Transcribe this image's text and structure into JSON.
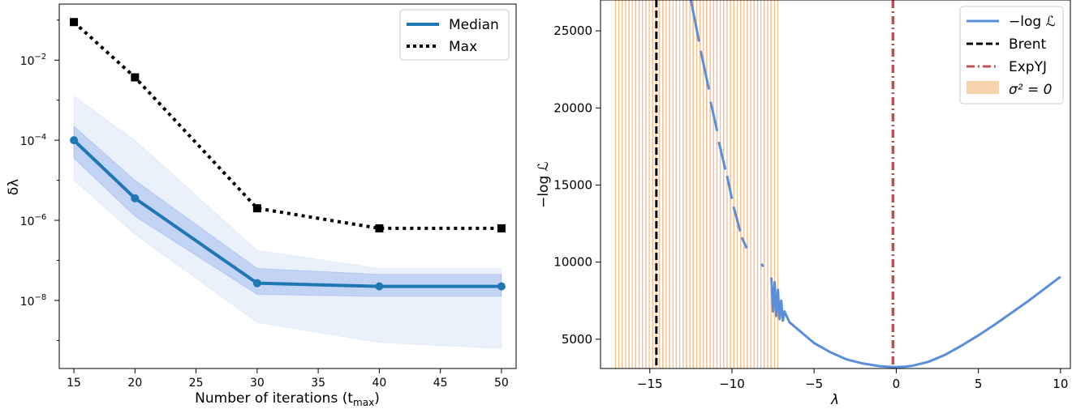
{
  "chart_data": [
    {
      "type": "line",
      "title": "",
      "xlabel": "Number of iterations (t",
      "xlabel_sub": "max",
      "xlabel_close": ")",
      "ylabel": "δλ",
      "yscale": "log",
      "xlim": [
        13.8,
        51.2
      ],
      "ylim_log10": [
        -9.7,
        -0.6
      ],
      "x_ticks": [
        15,
        20,
        25,
        30,
        35,
        40,
        45,
        50
      ],
      "y_ticks": [
        {
          "exp": -2,
          "label": "10",
          "sup": "−2"
        },
        {
          "exp": -4,
          "label": "10",
          "sup": "−4"
        },
        {
          "exp": -6,
          "label": "10",
          "sup": "−6"
        },
        {
          "exp": -8,
          "label": "10",
          "sup": "−8"
        }
      ],
      "x": [
        15,
        20,
        30,
        40,
        50
      ],
      "series": [
        {
          "name": "Median",
          "style": "solid",
          "color": "#1f77b4",
          "values_log10": [
            -4.0,
            -5.45,
            -7.57,
            -7.65,
            -7.65
          ]
        },
        {
          "name": "Max",
          "style": "dotted",
          "color": "#000000",
          "values_log10": [
            -1.05,
            -2.43,
            -5.7,
            -6.2,
            -6.2
          ]
        }
      ],
      "bands": [
        {
          "name": "outer",
          "color": "#1f5fd6",
          "opacity": 0.09,
          "lower_log10": [
            -5.0,
            -6.35,
            -8.55,
            -9.05,
            -9.2
          ],
          "upper_log10": [
            -2.9,
            -4.0,
            -6.75,
            -7.2,
            -7.2
          ]
        },
        {
          "name": "inner",
          "color": "#1f5fd6",
          "opacity": 0.2,
          "lower_log10": [
            -4.45,
            -5.9,
            -7.85,
            -7.9,
            -7.9
          ],
          "upper_log10": [
            -3.65,
            -5.0,
            -7.2,
            -7.35,
            -7.35
          ]
        }
      ],
      "legend": {
        "position": "top-right",
        "entries": [
          "Median",
          "Max"
        ]
      }
    },
    {
      "type": "line",
      "title": "",
      "xlabel": "λ",
      "ylabel": "−log ℒ",
      "xlim": [
        -18.0,
        10.6
      ],
      "ylim": [
        3100,
        27000
      ],
      "x_ticks": [
        {
          "value": -15,
          "label": "−15"
        },
        {
          "value": -10,
          "label": "−10"
        },
        {
          "value": -5,
          "label": "−5"
        },
        {
          "value": 0,
          "label": "0"
        },
        {
          "value": 5,
          "label": "5"
        },
        {
          "value": 10,
          "label": "10"
        }
      ],
      "y_ticks": [
        5000,
        10000,
        15000,
        20000,
        25000
      ],
      "nll_series": {
        "name": "−log ℒ",
        "color": "#5b8ed9",
        "segments": [
          [
            [
              -12.5,
              27000
            ],
            [
              -12.0,
              24300
            ]
          ],
          [
            [
              -11.9,
              23700
            ],
            [
              -11.4,
              21200
            ]
          ],
          [
            [
              -11.3,
              20400
            ],
            [
              -10.9,
              18500
            ]
          ],
          [
            [
              -10.8,
              17800
            ],
            [
              -10.4,
              16000
            ]
          ],
          [
            [
              -10.3,
              15600
            ],
            [
              -10.0,
              14100
            ]
          ],
          [
            [
              -9.9,
              13600
            ],
            [
              -9.5,
              12000
            ]
          ],
          [
            [
              -9.4,
              11600
            ],
            [
              -9.1,
              10900
            ]
          ],
          [
            [
              -8.2,
              9900
            ],
            [
              -8.1,
              9700
            ]
          ]
        ],
        "main": [
          [
            -7.6,
            9000
          ],
          [
            -7.5,
            6800
          ],
          [
            -7.4,
            8700
          ],
          [
            -7.3,
            6500
          ],
          [
            -7.2,
            8200
          ],
          [
            -7.1,
            6300
          ],
          [
            -7.0,
            7500
          ],
          [
            -6.9,
            6200
          ],
          [
            -6.8,
            6800
          ],
          [
            -6.5,
            6100
          ],
          [
            -6.0,
            5650
          ],
          [
            -5.0,
            4750
          ],
          [
            -4.0,
            4150
          ],
          [
            -3.0,
            3680
          ],
          [
            -2.0,
            3420
          ],
          [
            -1.0,
            3250
          ],
          [
            -0.3,
            3200
          ],
          [
            0.0,
            3200
          ],
          [
            0.5,
            3220
          ],
          [
            1.0,
            3280
          ],
          [
            2.0,
            3550
          ],
          [
            3.0,
            4000
          ],
          [
            4.0,
            4600
          ],
          [
            5.0,
            5250
          ],
          [
            6.0,
            5950
          ],
          [
            7.0,
            6700
          ],
          [
            8.0,
            7450
          ],
          [
            9.0,
            8250
          ],
          [
            10.0,
            9050
          ]
        ]
      },
      "brent": {
        "name": "Brent",
        "value": -14.6,
        "color": "#000000"
      },
      "expyj": {
        "name": "ExpYJ",
        "value": -0.2,
        "color": "#c0504d"
      },
      "zero_variance": {
        "name": "σ² = 0",
        "color": "#f4c08e",
        "x_start": -17.0,
        "x_end": -7.3,
        "line_count": 75
      },
      "legend": {
        "position": "top-right",
        "entries": [
          "−log ℒ",
          "Brent",
          "ExpYJ",
          "σ² = 0"
        ]
      }
    }
  ]
}
